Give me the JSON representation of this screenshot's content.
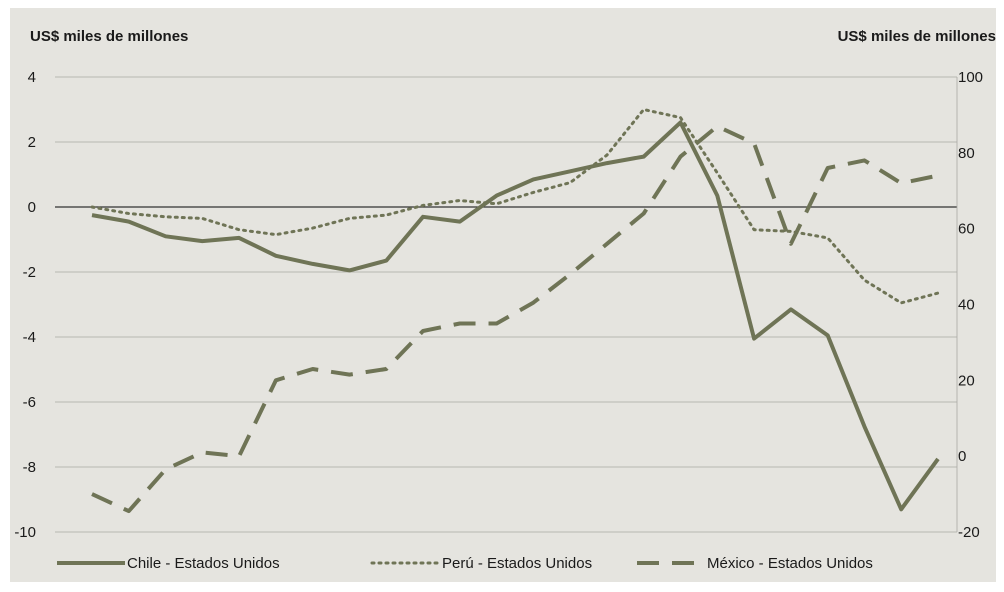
{
  "chart_data": {
    "type": "line",
    "left_axis_label": "US$ miles de millones",
    "right_axis_label": "US$ miles de millones",
    "left_ylim": [
      -10,
      4
    ],
    "right_ylim": [
      -20,
      100
    ],
    "left_ticks": [
      "4",
      "2",
      "0",
      "-2",
      "-4",
      "-6",
      "-8",
      "-10"
    ],
    "right_ticks": [
      "100",
      "80",
      "60",
      "40",
      "20",
      "0",
      "-20"
    ],
    "grid": true,
    "legend_position": "bottom",
    "colors": {
      "line": "#6f7456",
      "background": "#e5e4df",
      "grid": "#a9a9a3",
      "zero_line": "#333333"
    },
    "series": [
      {
        "name": "Chile - Estados Unidos",
        "axis": "left",
        "style": "solid",
        "values": [
          -0.25,
          -0.45,
          -0.9,
          -1.05,
          -0.95,
          -1.5,
          -1.75,
          -1.95,
          -1.65,
          -0.3,
          -0.45,
          0.35,
          0.85,
          1.1,
          1.35,
          1.55,
          2.6,
          0.35,
          -4.05,
          -3.15,
          -3.95,
          -6.75,
          -9.3,
          -7.75
        ]
      },
      {
        "name": "Perú - Estados Unidos",
        "axis": "left",
        "style": "dotted",
        "values": [
          0.0,
          -0.2,
          -0.3,
          -0.35,
          -0.7,
          -0.85,
          -0.65,
          -0.35,
          -0.25,
          0.05,
          0.2,
          0.1,
          0.45,
          0.75,
          1.6,
          3.0,
          2.75,
          1.05,
          -0.7,
          -0.75,
          -0.95,
          -2.25,
          -2.95,
          -2.65
        ]
      },
      {
        "name": "México - Estados Unidos",
        "axis": "right",
        "style": "dashed",
        "values": [
          -10.0,
          -14.5,
          -3.5,
          1.0,
          0.0,
          20.0,
          23.0,
          21.5,
          23.0,
          33.0,
          35.0,
          35.0,
          40.5,
          48.0,
          56.0,
          64.0,
          79.0,
          87.0,
          82.5,
          56.0,
          76.0,
          78.0,
          72.0,
          74.0
        ]
      }
    ]
  }
}
